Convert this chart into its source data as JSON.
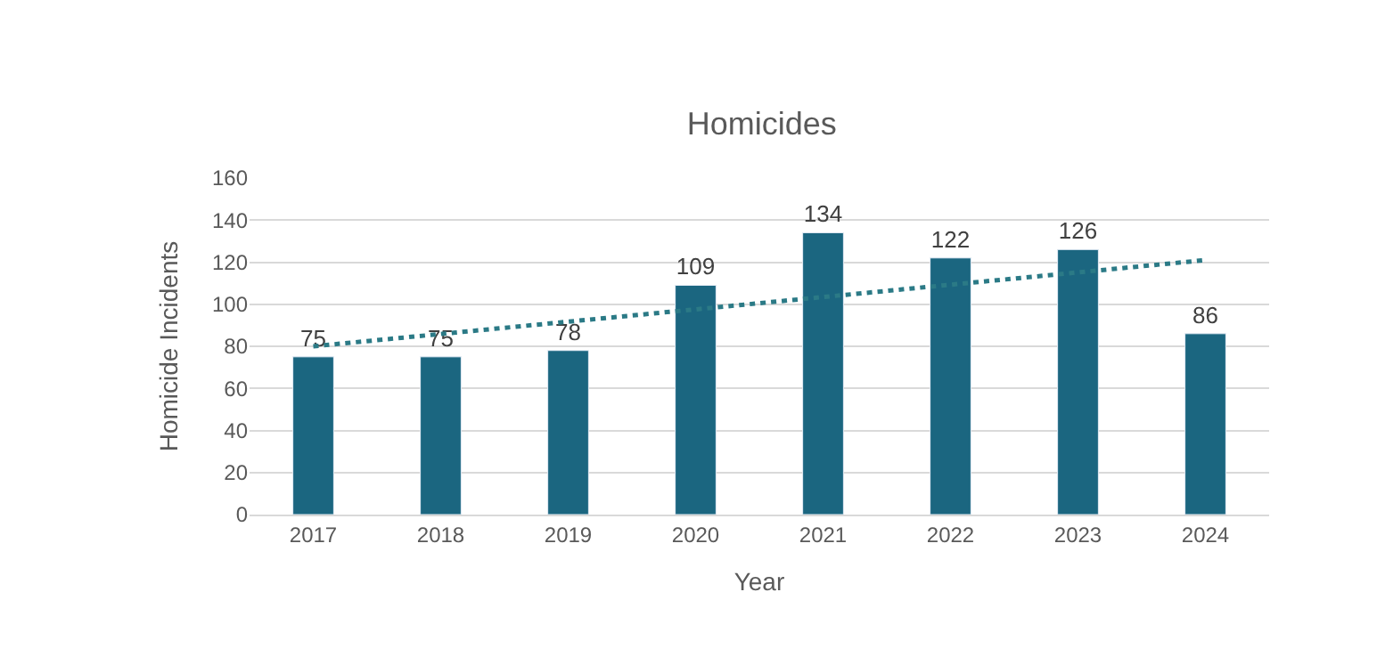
{
  "chart_data": {
    "type": "bar",
    "title": "Homicides",
    "xlabel": "Year",
    "ylabel": "Homicide Incidents",
    "categories": [
      "2017",
      "2018",
      "2019",
      "2020",
      "2021",
      "2022",
      "2023",
      "2024"
    ],
    "series": [
      {
        "color": "#1b6680",
        "values": [
          75,
          75,
          78,
          109,
          134,
          122,
          126,
          86
        ],
        "value_labels": [
          "75",
          "75",
          "78",
          "109",
          "134",
          "122",
          "126",
          "86"
        ]
      },
      {
        "type": "line",
        "color": "#2b7a86",
        "line_style": "dotted",
        "values": [
          80,
          null,
          null,
          null,
          null,
          null,
          null,
          121
        ]
      }
    ],
    "ylim": [
      0,
      160
    ],
    "yticks": [
      0,
      20,
      40,
      60,
      80,
      100,
      120,
      140,
      160
    ],
    "grid": "y"
  }
}
